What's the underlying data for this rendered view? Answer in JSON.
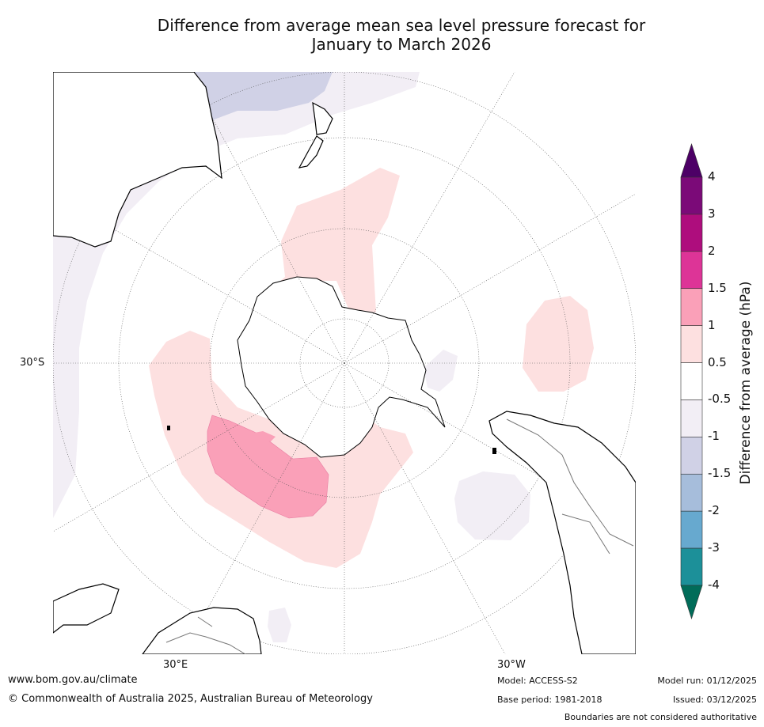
{
  "title": {
    "line1": "Difference from average mean sea level pressure forecast for",
    "line2": "January to March 2026"
  },
  "map": {
    "projection": "south-polar-stereographic",
    "lat_label": "30°S",
    "lon_labels": {
      "east": "30°E",
      "west": "30°W"
    }
  },
  "legend": {
    "title": "Difference from average (hPa)",
    "labels": [
      "4",
      "3",
      "2",
      "1.5",
      "1",
      "0.5",
      "-0.5",
      "-1",
      "-1.5",
      "-2",
      "-3",
      "-4"
    ],
    "bin_colors": [
      "#7b0a78",
      "#ae0d7d",
      "#dd3497",
      "#faa0b8",
      "#fde0e0",
      "#ffffff",
      "#f2eef5",
      "#d0d1e6",
      "#a6bddb",
      "#67a9cf",
      "#1c9099"
    ],
    "over_color": "#4d0066",
    "under_color": "#016c59"
  },
  "footer": {
    "website": "www.bom.gov.au/climate",
    "copyright": "© Commonwealth of Australia 2025, Australian Bureau of Meteorology",
    "model": "Model: ACCESS-S2",
    "base_period": "Base period: 1981-2018",
    "model_run": "Model run: 01/12/2025",
    "issued": "Issued: 03/12/2025",
    "disclaimer": "Boundaries are not considered authoritative"
  }
}
